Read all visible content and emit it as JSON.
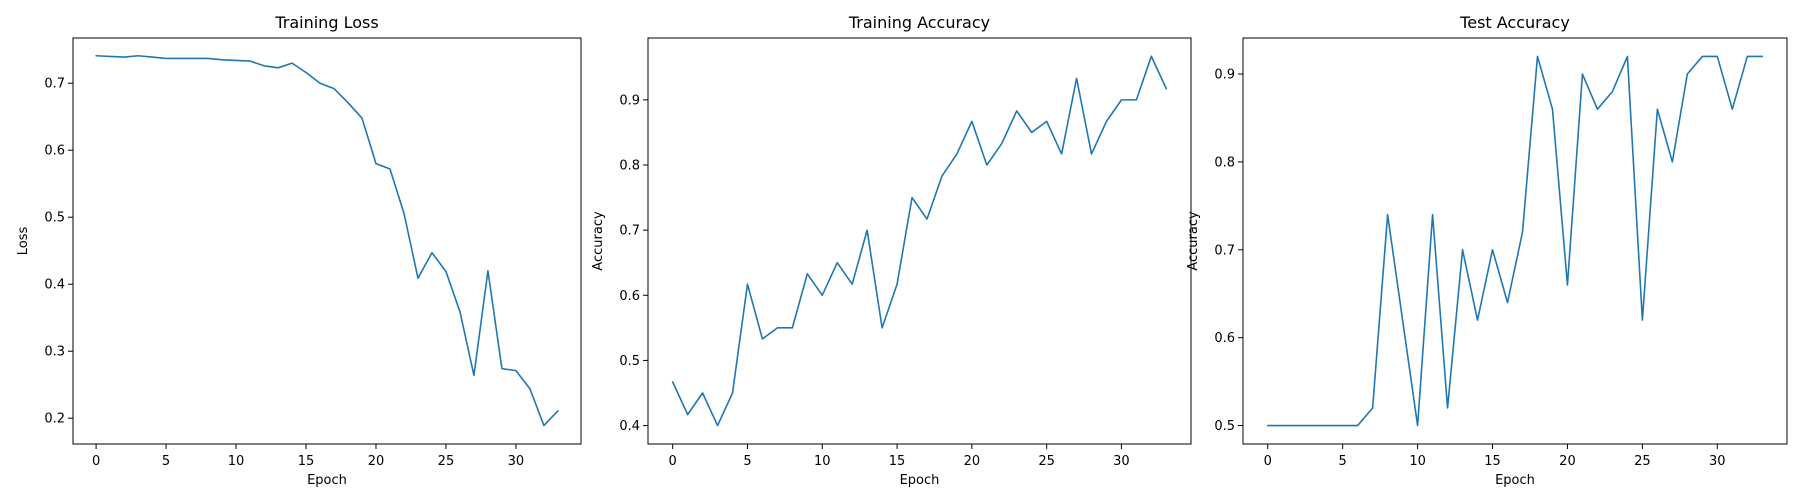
{
  "colors": {
    "series": "#1f77b4",
    "axis": "#000000",
    "background": "#ffffff"
  },
  "chart_data": [
    {
      "type": "line",
      "title": "Training Loss",
      "xlabel": "Epoch",
      "ylabel": "Loss",
      "xlim": [
        -1.65,
        34.65
      ],
      "ylim": [
        0.1615,
        0.7675
      ],
      "xticks": [
        0,
        5,
        10,
        15,
        20,
        25,
        30
      ],
      "yticks": [
        0.2,
        0.3,
        0.4,
        0.5,
        0.6,
        0.7
      ],
      "grid": false,
      "legend": "none",
      "x": [
        0,
        1,
        2,
        3,
        4,
        5,
        6,
        7,
        8,
        9,
        10,
        11,
        12,
        13,
        14,
        15,
        16,
        17,
        18,
        19,
        20,
        21,
        22,
        23,
        24,
        25,
        26,
        27,
        28,
        29,
        30,
        31,
        32,
        33
      ],
      "series": [
        {
          "values": [
            0.741,
            0.74,
            0.739,
            0.741,
            0.739,
            0.737,
            0.737,
            0.737,
            0.737,
            0.735,
            0.734,
            0.733,
            0.726,
            0.723,
            0.73,
            0.716,
            0.7,
            0.692,
            0.671,
            0.648,
            0.58,
            0.572,
            0.506,
            0.409,
            0.447,
            0.419,
            0.359,
            0.264,
            0.42,
            0.274,
            0.271,
            0.244,
            0.189,
            0.211
          ]
        }
      ]
    },
    {
      "type": "line",
      "title": "Training Accuracy",
      "xlabel": "Epoch",
      "ylabel": "Accuracy",
      "xlim": [
        -1.65,
        34.65
      ],
      "ylim": [
        0.3717,
        0.995
      ],
      "xticks": [
        0,
        5,
        10,
        15,
        20,
        25,
        30
      ],
      "yticks": [
        0.4,
        0.5,
        0.6,
        0.7,
        0.8,
        0.9
      ],
      "grid": false,
      "legend": "none",
      "x": [
        0,
        1,
        2,
        3,
        4,
        5,
        6,
        7,
        8,
        9,
        10,
        11,
        12,
        13,
        14,
        15,
        16,
        17,
        18,
        19,
        20,
        21,
        22,
        23,
        24,
        25,
        26,
        27,
        28,
        29,
        30,
        31,
        32,
        33
      ],
      "series": [
        {
          "values": [
            0.467,
            0.417,
            0.45,
            0.4,
            0.45,
            0.617,
            0.533,
            0.55,
            0.55,
            0.633,
            0.6,
            0.65,
            0.617,
            0.7,
            0.55,
            0.617,
            0.75,
            0.717,
            0.783,
            0.817,
            0.867,
            0.8,
            0.833,
            0.883,
            0.85,
            0.867,
            0.817,
            0.933,
            0.817,
            0.867,
            0.9,
            0.9,
            0.967,
            0.917
          ]
        }
      ]
    },
    {
      "type": "line",
      "title": "Test Accuracy",
      "xlabel": "Epoch",
      "ylabel": "Accuracy",
      "xlim": [
        -1.65,
        34.65
      ],
      "ylim": [
        0.479,
        0.941
      ],
      "xticks": [
        0,
        5,
        10,
        15,
        20,
        25,
        30
      ],
      "yticks": [
        0.5,
        0.6,
        0.7,
        0.8,
        0.9
      ],
      "grid": false,
      "legend": "none",
      "x": [
        0,
        1,
        2,
        3,
        4,
        5,
        6,
        7,
        8,
        9,
        10,
        11,
        12,
        13,
        14,
        15,
        16,
        17,
        18,
        19,
        20,
        21,
        22,
        23,
        24,
        25,
        26,
        27,
        28,
        29,
        30,
        31,
        32,
        33
      ],
      "series": [
        {
          "values": [
            0.5,
            0.5,
            0.5,
            0.5,
            0.5,
            0.5,
            0.5,
            0.52,
            0.74,
            0.62,
            0.5,
            0.74,
            0.52,
            0.7,
            0.62,
            0.7,
            0.64,
            0.72,
            0.92,
            0.86,
            0.66,
            0.9,
            0.86,
            0.88,
            0.92,
            0.62,
            0.86,
            0.8,
            0.9,
            0.92,
            0.92,
            0.86,
            0.92,
            0.92
          ]
        }
      ]
    }
  ]
}
